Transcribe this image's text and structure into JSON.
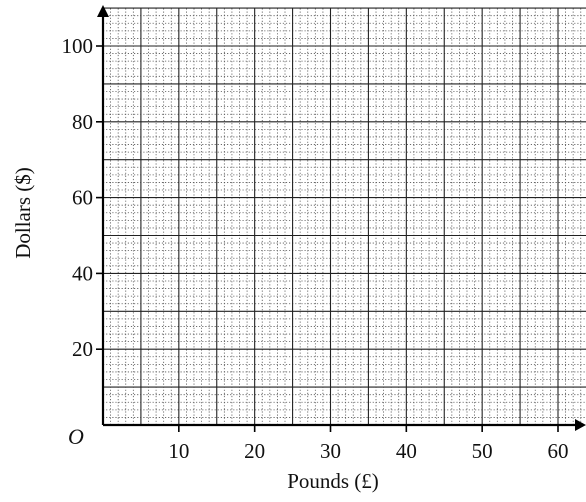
{
  "chart_data": {
    "type": "scatter",
    "title": "",
    "xlabel": "Pounds (£)",
    "ylabel": "Dollars ($)",
    "origin_label": "O",
    "xlim": [
      0,
      64
    ],
    "ylim": [
      0,
      110
    ],
    "x_ticks": [
      10,
      20,
      30,
      40,
      50,
      60
    ],
    "y_ticks": [
      20,
      40,
      60,
      80,
      100
    ],
    "x_tick_labels": [
      "10",
      "20",
      "30",
      "40",
      "50",
      "60"
    ],
    "y_tick_labels": [
      "20",
      "40",
      "60",
      "80",
      "100"
    ],
    "grid": {
      "on": true,
      "x_major_step": 5,
      "y_major_step": 10,
      "x_minor_step": 1,
      "y_minor_step": 2
    },
    "series": []
  }
}
